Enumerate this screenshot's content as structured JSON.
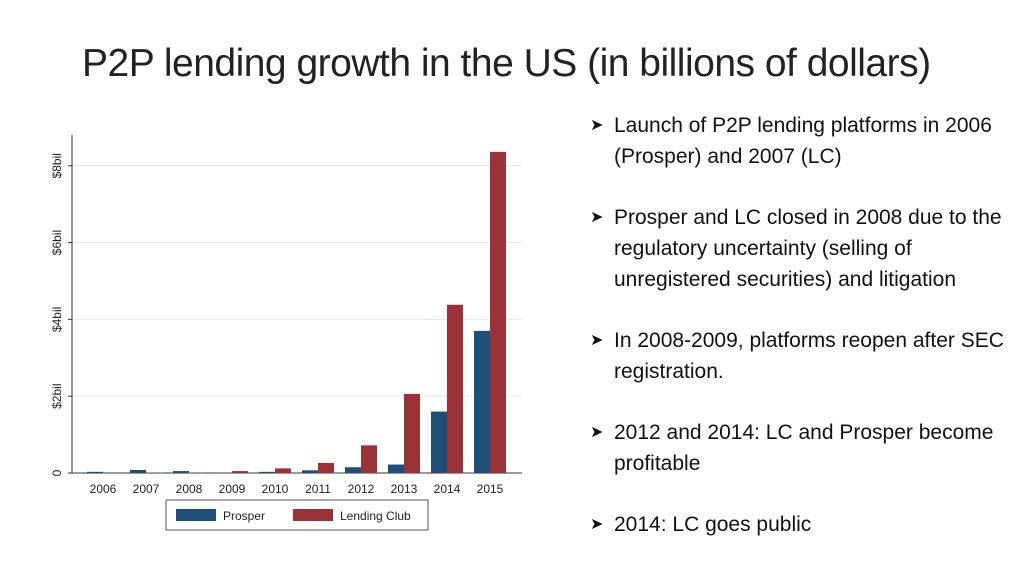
{
  "slide": {
    "title": "P2P lending growth in the US (in billions of dollars)"
  },
  "bullets": [
    {
      "icon": "arrowhead-bullet-icon",
      "text": "Launch of P2P lending platforms in 2006 (Prosper) and 2007 (LC)"
    },
    {
      "icon": "arrowhead-bullet-icon",
      "text": "Prosper and LC closed in 2008 due to the regulatory uncertainty (selling of unregistered securities) and litigation"
    },
    {
      "icon": "arrowhead-bullet-icon",
      "text": "In 2008-2009, platforms reopen after SEC registration."
    },
    {
      "icon": "arrowhead-bullet-icon",
      "text": "2012 and 2014: LC and Prosper become profitable"
    },
    {
      "icon": "arrowhead-bullet-icon",
      "text": "2014: LC goes public"
    }
  ],
  "chart_data": {
    "type": "bar",
    "title": "",
    "xlabel": "",
    "ylabel": "",
    "categories": [
      "2006",
      "2007",
      "2008",
      "2009",
      "2010",
      "2011",
      "2012",
      "2013",
      "2014",
      "2015"
    ],
    "series": [
      {
        "name": "Prosper",
        "color": "#1f4e79",
        "values": [
          0.03,
          0.08,
          0.05,
          0.01,
          0.03,
          0.07,
          0.15,
          0.22,
          1.6,
          3.7
        ]
      },
      {
        "name": "Lending Club",
        "color": "#9b3238",
        "values": [
          0,
          0.01,
          0.01,
          0.05,
          0.12,
          0.26,
          0.72,
          2.06,
          4.38,
          8.36
        ]
      }
    ],
    "yticks": [
      {
        "value": 0,
        "label": "0"
      },
      {
        "value": 2,
        "label": "$2bil"
      },
      {
        "value": 4,
        "label": "$4bil"
      },
      {
        "value": 6,
        "label": "$6bil"
      },
      {
        "value": 8,
        "label": "$8bil"
      }
    ],
    "ylim": [
      0,
      8.8
    ],
    "grid": true,
    "legend_position": "bottom"
  }
}
